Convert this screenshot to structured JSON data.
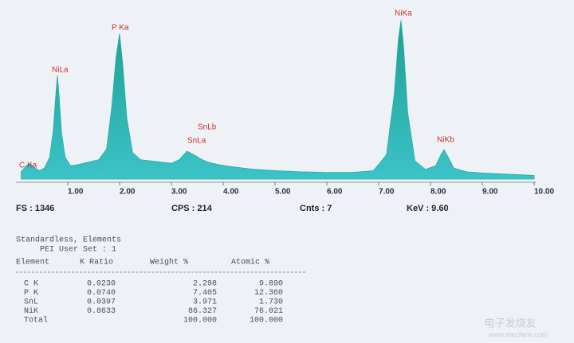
{
  "chart_data": {
    "type": "area",
    "color": "#23b0a2",
    "x": [
      0.1,
      0.2,
      0.28,
      0.35,
      0.45,
      0.55,
      0.65,
      0.72,
      0.77,
      0.8,
      0.83,
      0.88,
      0.95,
      1.05,
      1.2,
      1.4,
      1.6,
      1.75,
      1.85,
      1.93,
      2.0,
      2.06,
      2.14,
      2.25,
      2.4,
      2.6,
      2.8,
      3.0,
      3.15,
      3.3,
      3.44,
      3.55,
      3.7,
      3.9,
      4.2,
      4.6,
      5.0,
      5.5,
      6.0,
      6.5,
      6.9,
      7.15,
      7.3,
      7.38,
      7.43,
      7.48,
      7.56,
      7.7,
      7.9,
      8.1,
      8.2,
      8.26,
      8.33,
      8.45,
      8.7,
      9.0,
      9.5,
      10.0
    ],
    "values": [
      60,
      110,
      130,
      95,
      70,
      90,
      180,
      400,
      700,
      855,
      700,
      380,
      180,
      110,
      120,
      140,
      160,
      250,
      600,
      1000,
      1200,
      950,
      500,
      220,
      160,
      150,
      140,
      130,
      160,
      230,
      200,
      170,
      140,
      120,
      100,
      80,
      70,
      60,
      55,
      55,
      70,
      200,
      700,
      1150,
      1310,
      1100,
      550,
      150,
      80,
      110,
      200,
      243,
      190,
      90,
      60,
      50,
      40,
      30
    ],
    "xlim": [
      0,
      10
    ],
    "ylim": [
      0,
      1346
    ],
    "xticks": [
      {
        "value": 1,
        "label": "1.00"
      },
      {
        "value": 2,
        "label": "2.00"
      },
      {
        "value": 3,
        "label": "3.00"
      },
      {
        "value": 4,
        "label": "4.00"
      },
      {
        "value": 5,
        "label": "5.00"
      },
      {
        "value": 6,
        "label": "6.00"
      },
      {
        "value": 7,
        "label": "7.00"
      },
      {
        "value": 8,
        "label": "8.00"
      },
      {
        "value": 9,
        "label": "9.00"
      },
      {
        "value": 10,
        "label": "10.00"
      }
    ],
    "annotations": [
      "C Ka",
      "NiLa",
      "P Ka",
      "SnLb",
      "SnLa",
      "NiKa",
      "NiKb"
    ],
    "status": [
      "FS : 1346",
      "CPS : 214",
      "Cnts : 7",
      "KeV : 9.60"
    ]
  },
  "table": {
    "title": "Standardless, Elements",
    "subtitle": "PEI User Set : 1",
    "header": [
      "Element",
      "K Ratio",
      "Weight %",
      "Atomic %"
    ],
    "rows": [
      [
        "C K",
        "0.0230",
        "2.298",
        "9.890"
      ],
      [
        "P K",
        "0.0740",
        "7.405",
        "12.360"
      ],
      [
        "SnL",
        "0.0397",
        "3.971",
        "1.730"
      ],
      [
        "NiK",
        "0.8633",
        "86.327",
        "76.021"
      ]
    ],
    "total": {
      "label": "Total",
      "weight": "100.000",
      "atomic": "100.000"
    }
  },
  "watermark": {
    "name": "电子发烧友",
    "url": "www.elecfans.com"
  }
}
